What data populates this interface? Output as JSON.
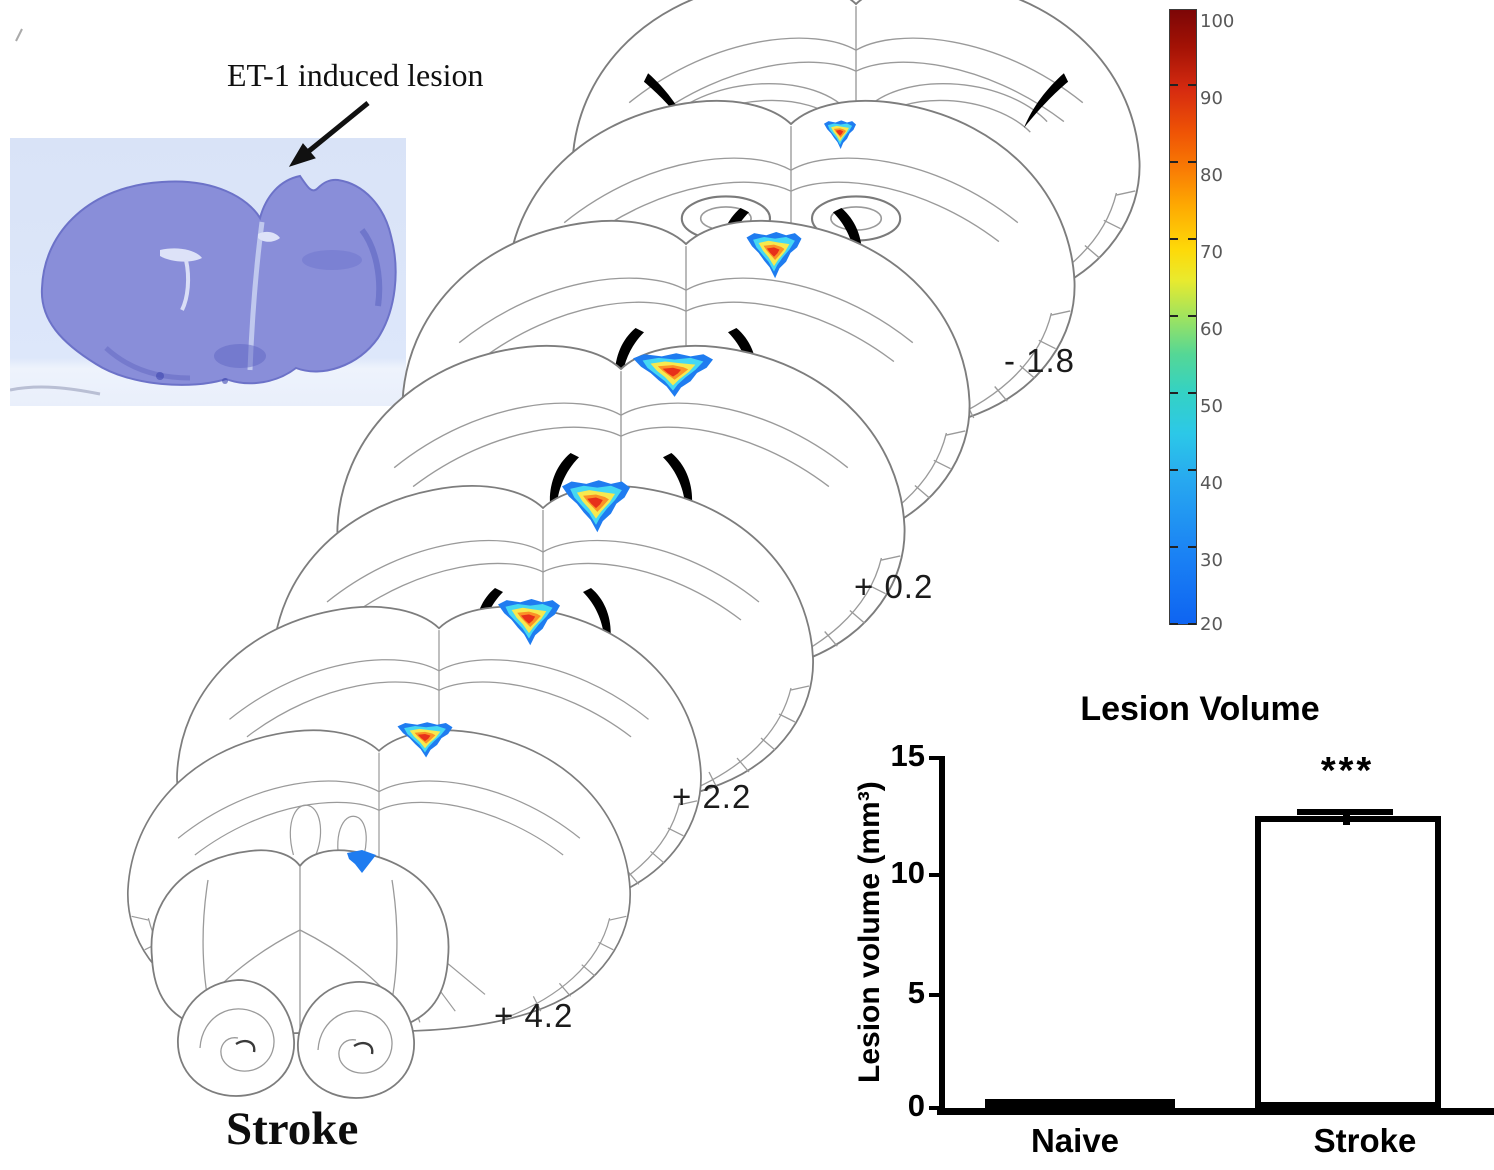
{
  "histology": {
    "annotation": "ET-1 induced lesion"
  },
  "atlas": {
    "section_labels": [
      {
        "text": "- 1.8"
      },
      {
        "text": "+ 0.2"
      },
      {
        "text": "+ 2.2"
      },
      {
        "text": "+ 4.2"
      }
    ],
    "group_label": "Stroke",
    "lesion_colormap": "jet"
  },
  "colorbar": {
    "colormap": "jet",
    "ticks": [
      "100",
      "90",
      "80",
      "70",
      "60",
      "50",
      "40",
      "30",
      "20"
    ]
  },
  "chart_data": {
    "type": "bar",
    "title": "Lesion Volume",
    "ylabel": "Lesion volume (mm³)",
    "categories": [
      "Naive",
      "Stroke"
    ],
    "values": [
      0.15,
      12.4
    ],
    "errors": [
      0,
      0.3
    ],
    "yticks": [
      0,
      5,
      10,
      15
    ],
    "ylim": [
      0,
      15
    ],
    "bar_fill": "#ffffff",
    "bar_border": "#000000",
    "significance": {
      "label": "***",
      "category": "Stroke"
    }
  }
}
